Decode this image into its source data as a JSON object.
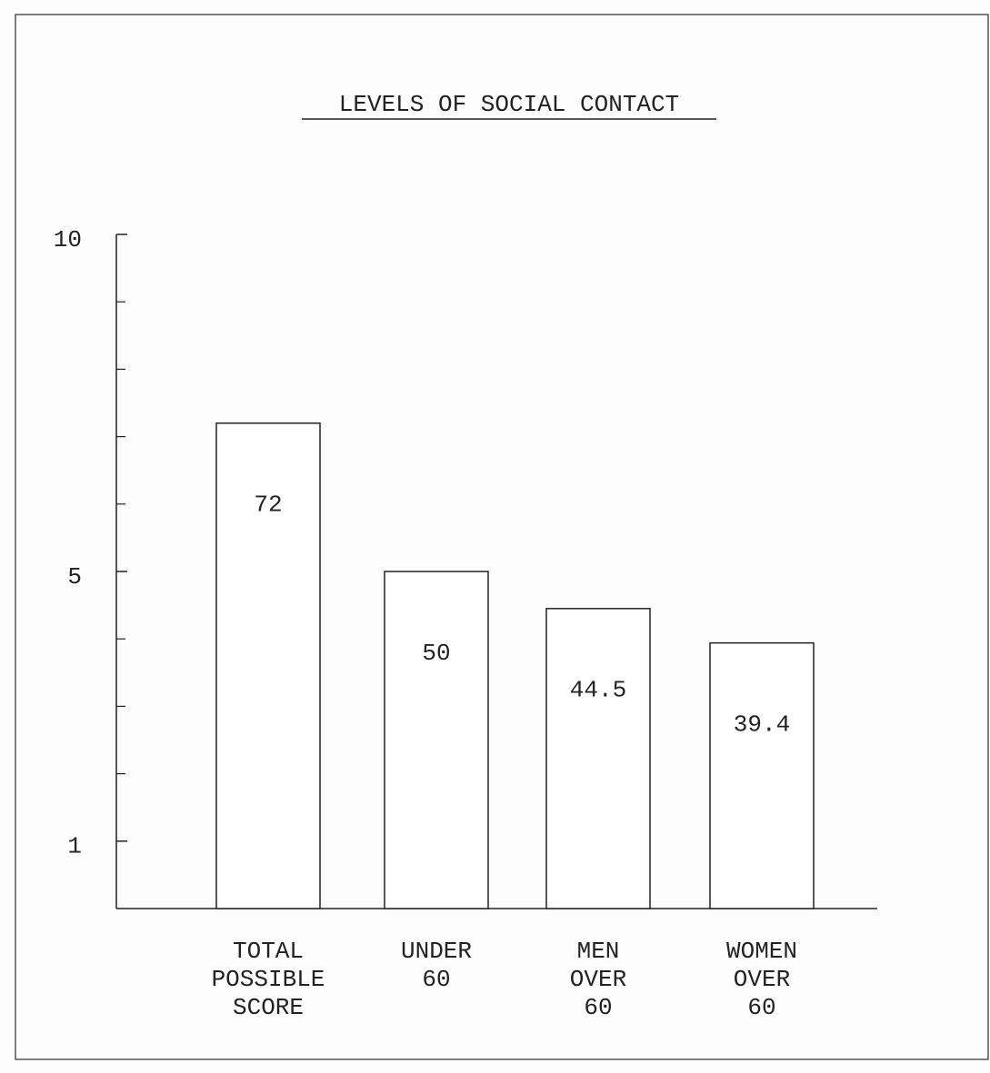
{
  "chart_data": {
    "type": "bar",
    "title": "LEVELS OF SOCIAL CONTACT",
    "categories": [
      "TOTAL\nPOSSIBLE\nSCORE",
      "UNDER\n60",
      "MEN\nOVER\n60",
      "WOMEN\nOVER\n60"
    ],
    "values": [
      7.2,
      5.0,
      4.45,
      3.94
    ],
    "value_labels": [
      "72",
      "50",
      "44.5",
      "39.4"
    ],
    "color": "#ffffff",
    "ylim": [
      0,
      10
    ],
    "yticks": [
      1,
      5,
      10
    ],
    "minor_yticks": [
      2,
      3,
      4,
      6,
      7,
      8,
      9
    ]
  }
}
